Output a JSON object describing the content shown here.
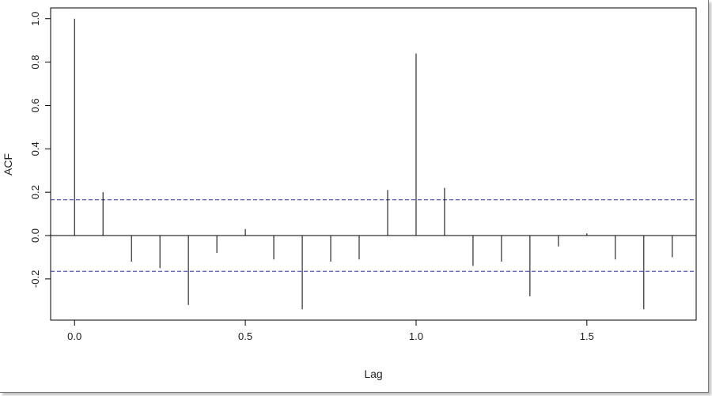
{
  "chart_data": {
    "type": "bar",
    "style": "vertical-lines",
    "title": "",
    "xlabel": "Lag",
    "ylabel": "ACF",
    "xlim": [
      -0.07,
      1.82
    ],
    "ylim": [
      -0.39,
      1.05
    ],
    "xticks": [
      {
        "value": 0.0,
        "label": "0.0"
      },
      {
        "value": 0.5,
        "label": "0.5"
      },
      {
        "value": 1.0,
        "label": "1.0"
      },
      {
        "value": 1.5,
        "label": "1.5"
      }
    ],
    "yticks": [
      {
        "value": -0.2,
        "label": "-0.2"
      },
      {
        "value": 0.0,
        "label": "0.0"
      },
      {
        "value": 0.2,
        "label": "0.2"
      },
      {
        "value": 0.4,
        "label": "0.4"
      },
      {
        "value": 0.6,
        "label": "0.6"
      },
      {
        "value": 0.8,
        "label": "0.8"
      },
      {
        "value": 1.0,
        "label": "1.0"
      }
    ],
    "confidence_bound": 0.165,
    "zero_line": true,
    "grid": false,
    "line_color": "#000000",
    "bound_color": "#3333aa",
    "x": [
      0.0,
      0.0833,
      0.1667,
      0.25,
      0.3333,
      0.4167,
      0.5,
      0.5833,
      0.6667,
      0.75,
      0.8333,
      0.9167,
      1.0,
      1.0833,
      1.1667,
      1.25,
      1.3333,
      1.4167,
      1.5,
      1.5833,
      1.6667,
      1.75
    ],
    "values": [
      1.0,
      0.2,
      -0.12,
      -0.15,
      -0.32,
      -0.08,
      0.03,
      -0.11,
      -0.34,
      -0.12,
      -0.11,
      0.21,
      0.84,
      0.22,
      -0.14,
      -0.12,
      -0.28,
      -0.05,
      0.01,
      -0.11,
      -0.34,
      -0.1
    ]
  }
}
